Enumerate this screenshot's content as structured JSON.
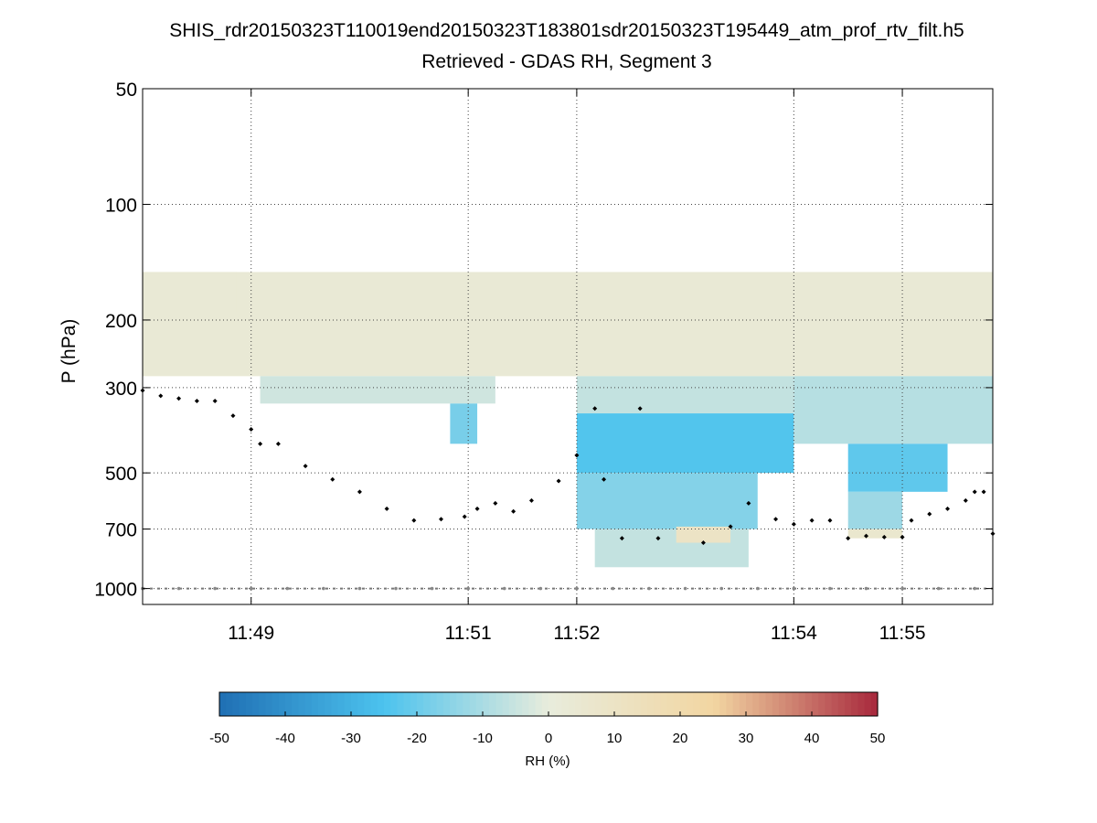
{
  "title_line1": "SHIS_rdr20150323T110019end20150323T183801sdr20150323T195449_atm_prof_rtv_filt.h5",
  "title_line2": "Retrieved - GDAS RH, Segment 3",
  "chart_data": {
    "type": "heatmap",
    "title": "SHIS_rdr20150323T110019end20150323T183801sdr20150323T195449_atm_prof_rtv_filt.h5",
    "subtitle": "Retrieved - GDAS RH, Segment 3",
    "xlabel": "",
    "ylabel": "P (hPa)",
    "y_scale": "log",
    "y_reversed": true,
    "ylim": [
      50,
      1100
    ],
    "xlim": [
      "11:48:00",
      "11:55:50"
    ],
    "x_ticks": [
      "11:49",
      "11:51",
      "11:52",
      "11:54",
      "11:55"
    ],
    "y_ticks": [
      50,
      100,
      200,
      300,
      500,
      700,
      1000
    ],
    "grid": true,
    "colorbar": {
      "label": "RH (%)",
      "min": -50,
      "max": 50,
      "ticks": [
        -50,
        -40,
        -30,
        -20,
        -10,
        0,
        10,
        20,
        30,
        40,
        50
      ],
      "colors": [
        "#1f6fb4",
        "#4cc3ee",
        "#e8ecdc",
        "#f2d6a2",
        "#a8273c"
      ]
    },
    "field": [
      {
        "x0": "11:48:00",
        "x1": "11:55:50",
        "p_top": 150,
        "p_bottom": 280,
        "rh": 3
      },
      {
        "x0": "11:48:00",
        "x1": "11:48:52",
        "p_top": 150,
        "p_bottom": 190,
        "rh": 3
      },
      {
        "x0": "11:49:05",
        "x1": "11:51:15",
        "p_top": 280,
        "p_bottom": 330,
        "rh": -4
      },
      {
        "x0": "11:50:50",
        "x1": "11:51:05",
        "p_top": 330,
        "p_bottom": 420,
        "rh": -18
      },
      {
        "x0": "11:52:00",
        "x1": "11:54:00",
        "p_top": 280,
        "p_bottom": 350,
        "rh": -6
      },
      {
        "x0": "11:52:00",
        "x1": "11:54:00",
        "p_top": 350,
        "p_bottom": 500,
        "rh": -24
      },
      {
        "x0": "11:52:00",
        "x1": "11:53:40",
        "p_top": 500,
        "p_bottom": 700,
        "rh": -16
      },
      {
        "x0": "11:52:10",
        "x1": "11:53:35",
        "p_top": 700,
        "p_bottom": 880,
        "rh": -6
      },
      {
        "x0": "11:52:55",
        "x1": "11:53:25",
        "p_top": 690,
        "p_bottom": 760,
        "rh": 10
      },
      {
        "x0": "11:54:00",
        "x1": "11:55:50",
        "p_top": 280,
        "p_bottom": 420,
        "rh": -8
      },
      {
        "x0": "11:54:30",
        "x1": "11:55:25",
        "p_top": 420,
        "p_bottom": 560,
        "rh": -22
      },
      {
        "x0": "11:54:30",
        "x1": "11:55:00",
        "p_top": 560,
        "p_bottom": 700,
        "rh": -12
      },
      {
        "x0": "11:54:30",
        "x1": "11:55:00",
        "p_top": 700,
        "p_bottom": 740,
        "rh": 6
      }
    ],
    "surface_pressure_hPa": 1000,
    "series": [
      {
        "values": [
          {
            "x": "11:48:00",
            "y": 305
          },
          {
            "x": "11:48:10",
            "y": 315
          },
          {
            "x": "11:48:20",
            "y": 320
          },
          {
            "x": "11:48:30",
            "y": 325
          },
          {
            "x": "11:48:40",
            "y": 325
          },
          {
            "x": "11:48:50",
            "y": 355
          },
          {
            "x": "11:49:00",
            "y": 385
          },
          {
            "x": "11:49:05",
            "y": 420
          },
          {
            "x": "11:49:15",
            "y": 420
          },
          {
            "x": "11:49:30",
            "y": 480
          },
          {
            "x": "11:49:45",
            "y": 520
          },
          {
            "x": "11:50:00",
            "y": 560
          },
          {
            "x": "11:50:15",
            "y": 620
          },
          {
            "x": "11:50:30",
            "y": 665
          },
          {
            "x": "11:50:45",
            "y": 660
          },
          {
            "x": "11:50:58",
            "y": 650
          },
          {
            "x": "11:51:05",
            "y": 620
          },
          {
            "x": "11:51:15",
            "y": 600
          },
          {
            "x": "11:51:25",
            "y": 630
          },
          {
            "x": "11:51:35",
            "y": 590
          },
          {
            "x": "11:51:50",
            "y": 525
          },
          {
            "x": "11:52:00",
            "y": 450
          },
          {
            "x": "11:52:10",
            "y": 340
          },
          {
            "x": "11:52:15",
            "y": 520
          },
          {
            "x": "11:52:25",
            "y": 740
          },
          {
            "x": "11:52:35",
            "y": 340
          },
          {
            "x": "11:52:45",
            "y": 740
          },
          {
            "x": "11:53:10",
            "y": 760
          },
          {
            "x": "11:53:25",
            "y": 690
          },
          {
            "x": "11:53:35",
            "y": 600
          },
          {
            "x": "11:53:50",
            "y": 660
          },
          {
            "x": "11:54:00",
            "y": 680
          },
          {
            "x": "11:54:10",
            "y": 665
          },
          {
            "x": "11:54:20",
            "y": 665
          },
          {
            "x": "11:54:30",
            "y": 740
          },
          {
            "x": "11:54:40",
            "y": 730
          },
          {
            "x": "11:54:50",
            "y": 735
          },
          {
            "x": "11:55:00",
            "y": 735
          },
          {
            "x": "11:55:05",
            "y": 665
          },
          {
            "x": "11:55:15",
            "y": 640
          },
          {
            "x": "11:55:25",
            "y": 620
          },
          {
            "x": "11:55:35",
            "y": 590
          },
          {
            "x": "11:55:40",
            "y": 560
          },
          {
            "x": "11:55:45",
            "y": 560
          },
          {
            "x": "11:55:50",
            "y": 720
          }
        ]
      }
    ]
  }
}
